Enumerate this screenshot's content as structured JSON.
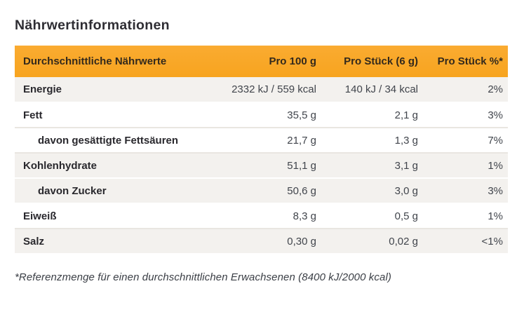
{
  "title": "Nährwertinformationen",
  "table": {
    "headers": {
      "nutrient": "Durchschnittliche Nährwerte",
      "per_100g": "Pro 100 g",
      "per_piece": "Pro Stück (6 g)",
      "per_piece_percent": "Pro Stück %*"
    },
    "rows": [
      {
        "label": "Energie",
        "per_100g": "2332 kJ / 559 kcal",
        "per_piece": "140 kJ / 34 kcal",
        "percent": "2%"
      },
      {
        "label": "Fett",
        "per_100g": "35,5 g",
        "per_piece": "2,1 g",
        "percent": "3%"
      },
      {
        "label": "davon gesättigte Fettsäuren",
        "per_100g": "21,7 g",
        "per_piece": "1,3 g",
        "percent": "7%"
      },
      {
        "label": "Kohlenhydrate",
        "per_100g": "51,1 g",
        "per_piece": "3,1 g",
        "percent": "1%"
      },
      {
        "label": "davon Zucker",
        "per_100g": "50,6 g",
        "per_piece": "3,0 g",
        "percent": "3%"
      },
      {
        "label": "Eiweiß",
        "per_100g": "8,3 g",
        "per_piece": "0,5 g",
        "percent": "1%"
      },
      {
        "label": "Salz",
        "per_100g": "0,30 g",
        "per_piece": "0,02 g",
        "percent": "<1%"
      }
    ]
  },
  "footnote": "*Referenzmenge für einen durchschnittlichen Erwachsenen (8400 kJ/2000 kcal)",
  "colors": {
    "header_bg": "#F8A727",
    "header_text": "#33291C",
    "shaded_row_bg": "#F3F1EE",
    "label_text": "#29282D",
    "value_text": "#41454C",
    "separator": "#E9E6E1",
    "title_text": "#2E2D33"
  }
}
